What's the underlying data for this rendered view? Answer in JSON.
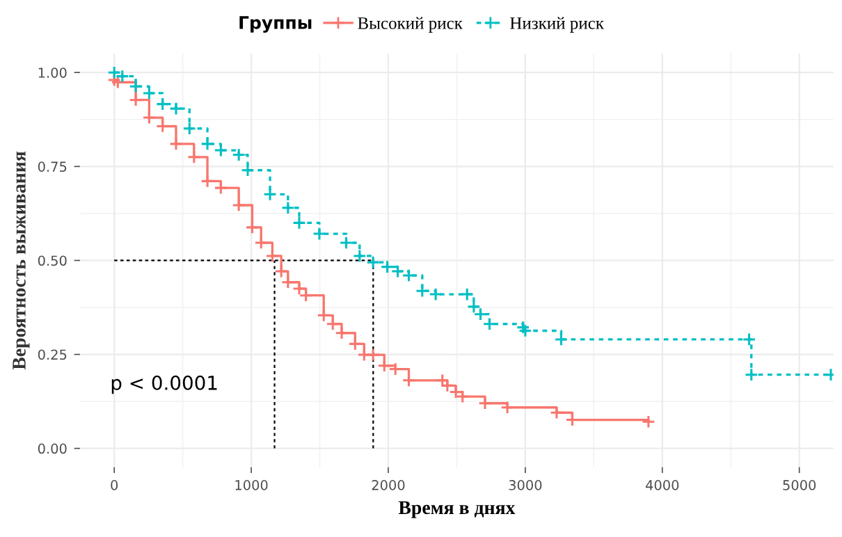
{
  "chart_data": {
    "type": "step",
    "xlabel": "Время в днях",
    "ylabel": "Вероятность выживания",
    "legend_title": "Группы",
    "legend": "top",
    "grid": true,
    "marker": "cross",
    "xlim": [
      -250,
      5250
    ],
    "xticks": [
      0,
      1000,
      2000,
      3000,
      4000,
      5000
    ],
    "ylim": [
      -0.05,
      1.05
    ],
    "yticks": [
      {
        "value": 0,
        "label": "0.00"
      },
      {
        "value": 0.25,
        "label": "0.25"
      },
      {
        "value": 0.5,
        "label": "0.50"
      },
      {
        "value": 0.75,
        "label": "0.75"
      },
      {
        "value": 1,
        "label": "1.00"
      }
    ],
    "series": [
      {
        "name": "Высокий риск",
        "color": "#f8766d",
        "line_style": "solid",
        "x": [
          0,
          26,
          157,
          255,
          353,
          451,
          582,
          680,
          778,
          909,
          1007,
          1072,
          1154,
          1219,
          1268,
          1350,
          1399,
          1529,
          1595,
          1660,
          1758,
          1824,
          1889,
          1971,
          2052,
          2150,
          2395,
          2431,
          2493,
          2542,
          2706,
          2869,
          3229,
          3343,
          3899
        ],
        "values": [
          0.98,
          0.974,
          0.927,
          0.88,
          0.857,
          0.81,
          0.775,
          0.711,
          0.693,
          0.647,
          0.588,
          0.547,
          0.512,
          0.471,
          0.442,
          0.425,
          0.407,
          0.354,
          0.331,
          0.307,
          0.278,
          0.249,
          0.249,
          0.22,
          0.211,
          0.181,
          0.181,
          0.167,
          0.15,
          0.138,
          0.12,
          0.109,
          0.095,
          0.076,
          0.071
        ]
      },
      {
        "name": "Низкий риск",
        "color": "#00bfc4",
        "line_style": "dashed",
        "x": [
          0,
          59,
          157,
          255,
          353,
          451,
          549,
          680,
          778,
          909,
          974,
          1137,
          1268,
          1350,
          1497,
          1693,
          1791,
          1889,
          1993,
          2069,
          2150,
          2248,
          2346,
          2575,
          2624,
          2673,
          2739,
          2984,
          3000,
          3262,
          4634,
          4650,
          5230
        ],
        "values": [
          1.0,
          0.99,
          0.963,
          0.945,
          0.916,
          0.904,
          0.851,
          0.81,
          0.793,
          0.781,
          0.74,
          0.676,
          0.64,
          0.6,
          0.571,
          0.547,
          0.512,
          0.495,
          0.483,
          0.471,
          0.46,
          0.419,
          0.41,
          0.41,
          0.377,
          0.357,
          0.331,
          0.322,
          0.313,
          0.29,
          0.29,
          0.196,
          0.196
        ]
      }
    ],
    "ref_lines": [
      {
        "axis": "y",
        "value": 0.5,
        "line_style": "dashed",
        "color": "#000000"
      },
      {
        "axis": "x",
        "value": 1170,
        "line_style": "dashed",
        "color": "#000000"
      },
      {
        "axis": "x",
        "value": 1890,
        "line_style": "dashed",
        "color": "#000000"
      }
    ],
    "annotations": [
      "p < 0.0001"
    ]
  }
}
